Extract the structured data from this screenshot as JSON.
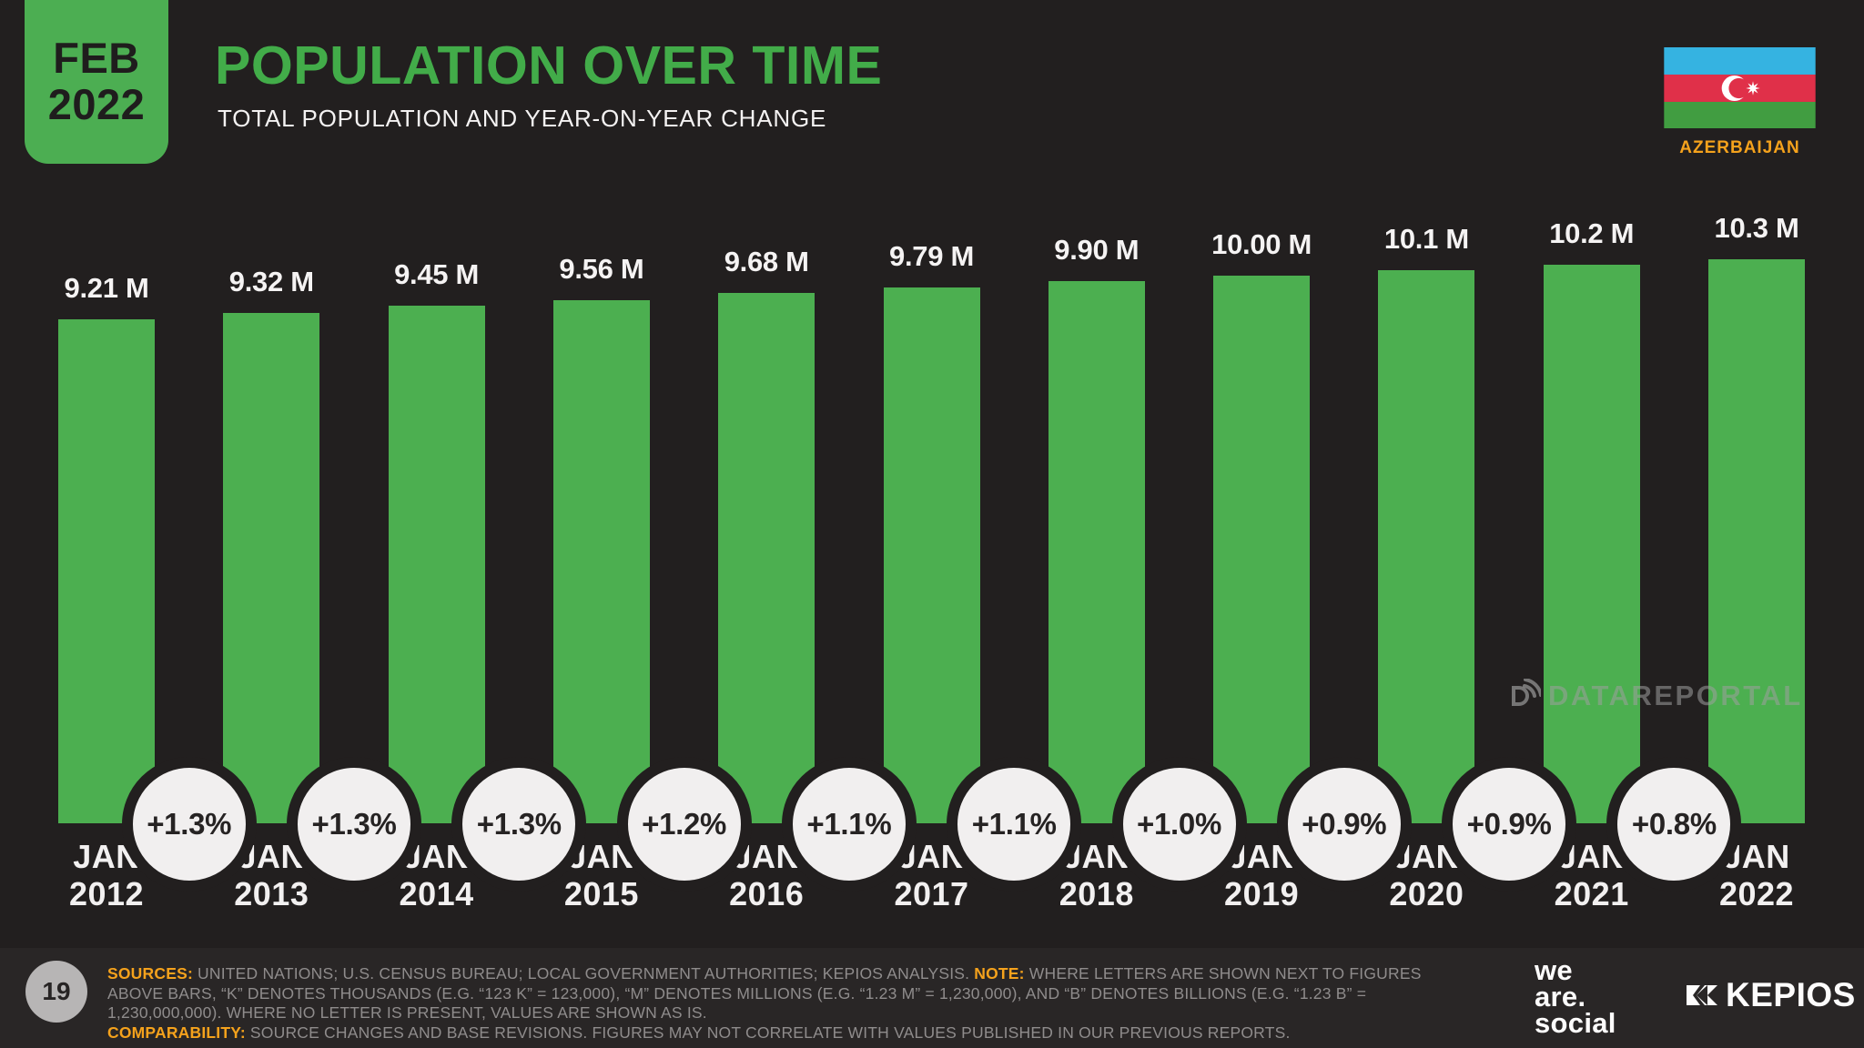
{
  "header": {
    "date_badge_month": "FEB",
    "date_badge_year": "2022",
    "title": "POPULATION OVER TIME",
    "subtitle": "TOTAL POPULATION AND YEAR-ON-YEAR CHANGE",
    "country_label": "AZERBAIJAN"
  },
  "chart_data": {
    "type": "bar",
    "title": "POPULATION OVER TIME",
    "subtitle": "TOTAL POPULATION AND YEAR-ON-YEAR CHANGE",
    "categories": [
      "JAN 2012",
      "JAN 2013",
      "JAN 2014",
      "JAN 2015",
      "JAN 2016",
      "JAN 2017",
      "JAN 2018",
      "JAN 2019",
      "JAN 2020",
      "JAN 2021",
      "JAN 2022"
    ],
    "values_millions": [
      9.21,
      9.32,
      9.45,
      9.56,
      9.68,
      9.79,
      9.9,
      10.0,
      10.1,
      10.2,
      10.3
    ],
    "value_labels": [
      "9.21 M",
      "9.32 M",
      "9.45 M",
      "9.56 M",
      "9.68 M",
      "9.79 M",
      "9.90 M",
      "10.00 M",
      "10.1 M",
      "10.2 M",
      "10.3 M"
    ],
    "yoy_change_labels": [
      "+1.3%",
      "+1.3%",
      "+1.3%",
      "+1.2%",
      "+1.1%",
      "+1.1%",
      "+1.0%",
      "+0.9%",
      "+0.9%",
      "+0.8%"
    ],
    "ylim": [
      0,
      10.3
    ],
    "grid": false,
    "bar_color": "#4caf50",
    "yoy_circle_color": "#f1efef"
  },
  "watermark": {
    "text": "DATAREPORTAL",
    "icon": "signal-d-icon"
  },
  "footer": {
    "page_number": "19",
    "sources_label": "SOURCES:",
    "sources_text": " UNITED NATIONS; U.S. CENSUS BUREAU; LOCAL GOVERNMENT AUTHORITIES; KEPIOS ANALYSIS. ",
    "note_label": "NOTE:",
    "note_text": " WHERE LETTERS ARE SHOWN NEXT TO FIGURES ABOVE BARS, “K” DENOTES THOUSANDS (E.G. “123 K” = 123,000), “M” DENOTES MILLIONS (E.G. “1.23 M” = 1,230,000), AND “B” DENOTES BILLIONS (E.G. “1.23 B” = 1,230,000,000). WHERE NO LETTER IS PRESENT, VALUES ARE SHOWN AS IS. ",
    "comparability_label": "COMPARABILITY:",
    "comparability_text": " SOURCE CHANGES AND BASE REVISIONS. FIGURES MAY NOT CORRELATE WITH VALUES PUBLISHED IN OUR PREVIOUS REPORTS.",
    "we_are_social_lines": [
      "we",
      "are.",
      "social"
    ],
    "kepios_label": "KEPIOS"
  },
  "colors": {
    "background": "#221f1f",
    "accent_green": "#42ac49",
    "bar_green": "#4caf50",
    "orange": "#f5a21c",
    "footer_gray": "#8f8c8c"
  }
}
